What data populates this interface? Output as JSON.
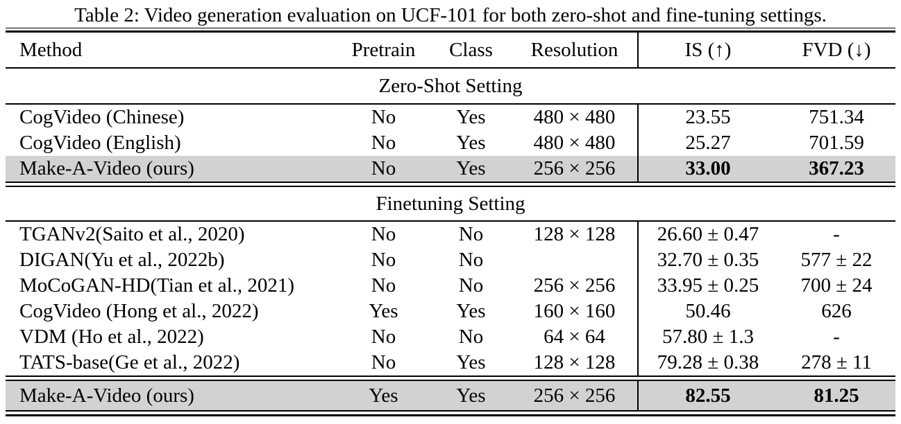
{
  "caption": "Table 2: Video generation evaluation on UCF-101 for both zero-shot and fine-tuning settings.",
  "columns": {
    "method": "Method",
    "pretrain": "Pretrain",
    "class": "Class",
    "resolution": "Resolution",
    "is": "IS (↑)",
    "fvd": "FVD (↓)"
  },
  "highlight_color": "#d2d2d2",
  "sections": [
    {
      "label": "Zero-Shot Setting",
      "rows": [
        {
          "method": "CogVideo (Chinese)",
          "pretrain": "No",
          "class": "Yes",
          "resolution": "480 × 480",
          "is": "23.55",
          "fvd": "751.34"
        },
        {
          "method": "CogVideo (English)",
          "pretrain": "No",
          "class": "Yes",
          "resolution": "480 × 480",
          "is": "25.27",
          "fvd": "701.59"
        },
        {
          "method": "Make-A-Video (ours)",
          "pretrain": "No",
          "class": "Yes",
          "resolution": "256 × 256",
          "is": "33.00",
          "fvd": "367.23"
        }
      ]
    },
    {
      "label": "Finetuning Setting",
      "rows": [
        {
          "method": "TGANv2(Saito et al., 2020)",
          "pretrain": "No",
          "class": "No",
          "resolution": "128 × 128",
          "is": "26.60 ± 0.47",
          "fvd": "-"
        },
        {
          "method": "DIGAN(Yu et al., 2022b)",
          "pretrain": "No",
          "class": "No",
          "resolution": "",
          "is": "32.70 ± 0.35",
          "fvd": "577 ± 22"
        },
        {
          "method": "MoCoGAN-HD(Tian et al., 2021)",
          "pretrain": "No",
          "class": "No",
          "resolution": "256 × 256",
          "is": "33.95 ± 0.25",
          "fvd": "700 ± 24"
        },
        {
          "method": "CogVideo (Hong et al., 2022)",
          "pretrain": "Yes",
          "class": "Yes",
          "resolution": "160 × 160",
          "is": "50.46",
          "fvd": "626"
        },
        {
          "method": "VDM (Ho et al., 2022)",
          "pretrain": "No",
          "class": "No",
          "resolution": "64 × 64",
          "is": "57.80 ± 1.3",
          "fvd": "-"
        },
        {
          "method": "TATS-base(Ge et al., 2022)",
          "pretrain": "No",
          "class": "Yes",
          "resolution": "128 × 128",
          "is": "79.28 ± 0.38",
          "fvd": "278 ± 11"
        },
        {
          "method": "Make-A-Video (ours)",
          "pretrain": "Yes",
          "class": "Yes",
          "resolution": "256 × 256",
          "is": "82.55",
          "fvd": "81.25"
        }
      ]
    }
  ]
}
